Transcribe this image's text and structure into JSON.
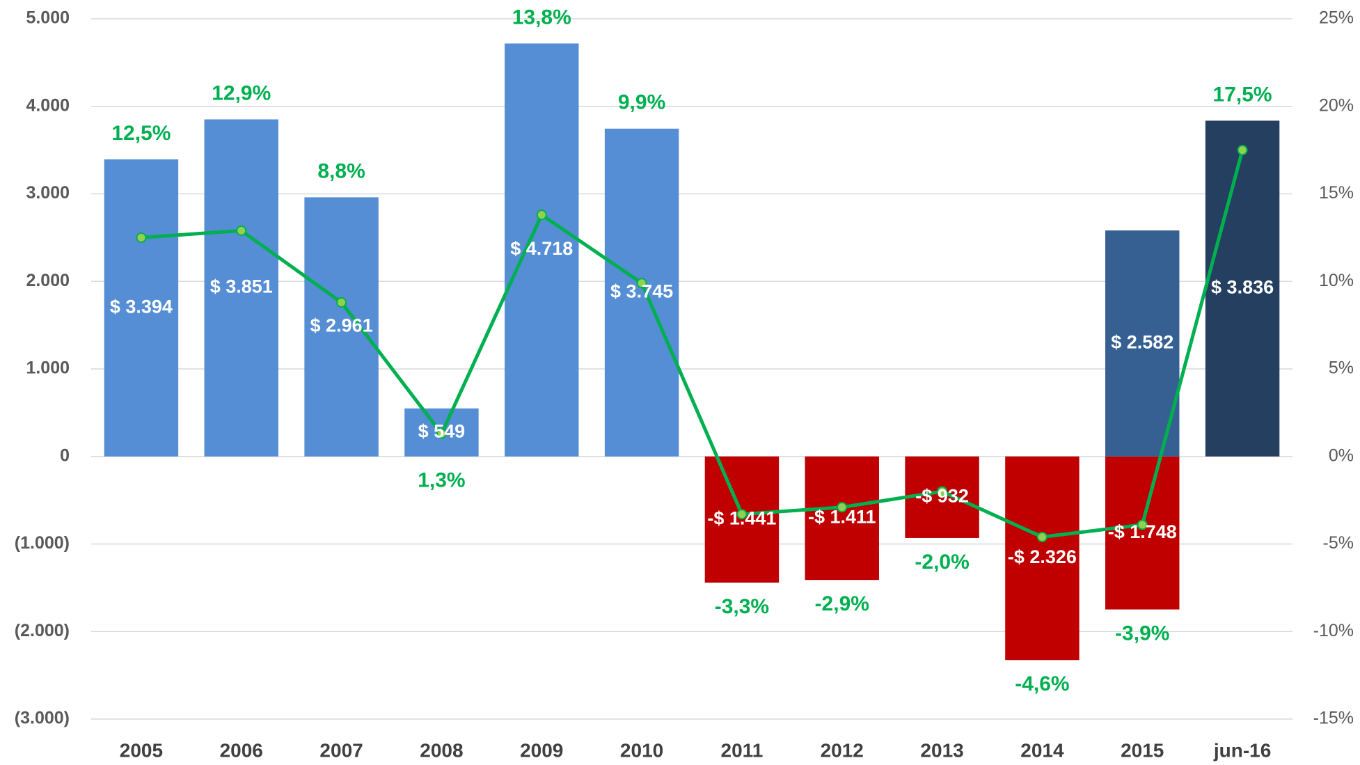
{
  "chart_data": {
    "type": "bar_line",
    "categories": [
      "2005",
      "2006",
      "2007",
      "2008",
      "2009",
      "2010",
      "2011",
      "2012",
      "2013",
      "2014",
      "2015",
      "jun-16"
    ],
    "series": [
      {
        "type": "bar",
        "colors": [
          "#558ed5",
          "#558ed5",
          "#558ed5",
          "#558ed5",
          "#558ed5",
          "#558ed5",
          "#c00000",
          "#c00000",
          "#c00000",
          "#c00000",
          "#c00000",
          "#243f60"
        ],
        "values": [
          3394,
          3851,
          2961,
          549,
          4718,
          3745,
          -1441,
          -1411,
          -932,
          -2326,
          -1748,
          3836
        ],
        "value_labels": [
          "$ 3.394",
          "$ 3.851",
          "$ 2.961",
          "$ 549",
          "$ 4.718",
          "$ 3.745",
          "-$ 1.441",
          "-$ 1.411",
          "-$ 932",
          "-$ 2.326",
          "-$ 1.748",
          "$ 3.836"
        ]
      },
      {
        "type": "bar",
        "color": "#366092",
        "values": [
          null,
          null,
          null,
          null,
          null,
          null,
          null,
          null,
          null,
          null,
          2582,
          null
        ],
        "value_labels": [
          null,
          null,
          null,
          null,
          null,
          null,
          null,
          null,
          null,
          null,
          "$ 2.582",
          null
        ]
      },
      {
        "type": "line",
        "axis": "y2",
        "color": "#00b050",
        "marker_color": "#92d050",
        "values": [
          12.5,
          12.9,
          8.8,
          1.3,
          13.8,
          9.9,
          -3.3,
          -2.9,
          -2.0,
          -4.6,
          -3.9,
          17.5
        ],
        "value_labels": [
          "12,5%",
          "12,9%",
          "8,8%",
          "1,3%",
          "13,8%",
          "9,9%",
          "-3,3%",
          "-2,9%",
          "-2,0%",
          "-4,6%",
          "-3,9%",
          "17,5%"
        ]
      }
    ],
    "ylim": [
      -3000,
      5000
    ],
    "yticks": [
      {
        "value": -3000,
        "label": "(3.000)"
      },
      {
        "value": -2000,
        "label": "(2.000)"
      },
      {
        "value": -1000,
        "label": "(1.000)"
      },
      0,
      {
        "value": 1000,
        "label": "1.000"
      },
      {
        "value": 2000,
        "label": "2.000"
      },
      {
        "value": 3000,
        "label": "3.000"
      },
      {
        "value": 4000,
        "label": "4.000"
      },
      {
        "value": 5000,
        "label": "5.000"
      }
    ],
    "y2lim": [
      -15,
      25
    ],
    "y2ticks": [
      {
        "value": -15,
        "label": "-15%"
      },
      {
        "value": -10,
        "label": "-10%"
      },
      {
        "value": -5,
        "label": "-5%"
      },
      {
        "value": 0,
        "label": "0%"
      },
      {
        "value": 5,
        "label": "5%"
      },
      {
        "value": 10,
        "label": "10%"
      },
      {
        "value": 15,
        "label": "15%"
      },
      {
        "value": 20,
        "label": "20%"
      },
      {
        "value": 25,
        "label": "25%"
      }
    ],
    "grid": true
  }
}
